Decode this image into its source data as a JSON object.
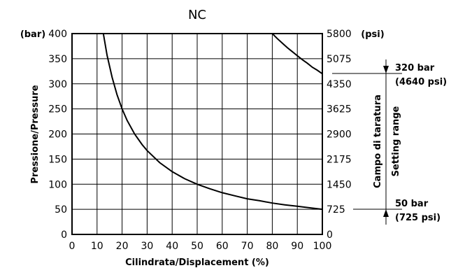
{
  "chart_data": {
    "type": "line",
    "title": "NC",
    "xlabel": "Cilindrata/Displacement (%)",
    "ylabel": "Pressione/Pressure",
    "y_unit_left": "(bar)",
    "y_unit_right": "(psi)",
    "xlim": [
      0,
      100
    ],
    "ylim": [
      0,
      400
    ],
    "grid": true,
    "x_ticks": [
      "0",
      "10",
      "20",
      "30",
      "40",
      "50",
      "60",
      "70",
      "80",
      "90",
      "100"
    ],
    "y_ticks_left": [
      "0",
      "50",
      "100",
      "150",
      "200",
      "250",
      "300",
      "350",
      "400"
    ],
    "y_ticks_right": [
      "0",
      "725",
      "1450",
      "2175",
      "2900",
      "3625",
      "4350",
      "5075",
      "5800"
    ],
    "series": [
      {
        "x": [
          12.5,
          14,
          16,
          18,
          20,
          22,
          25,
          28,
          30,
          35,
          40,
          45,
          50,
          55,
          60,
          65,
          70,
          75,
          80,
          85,
          90,
          95,
          100
        ],
        "y": [
          400,
          357,
          313,
          278,
          250,
          227,
          200,
          179,
          167,
          143,
          125,
          111,
          100,
          91,
          83,
          77,
          71,
          67,
          62.5,
          59,
          56,
          53,
          50
        ]
      },
      {
        "x": [
          80,
          82,
          84,
          86,
          88,
          90,
          92,
          94,
          96,
          98,
          100
        ],
        "y": [
          400,
          390,
          381,
          372,
          364,
          356,
          348,
          341,
          333,
          327,
          320
        ]
      }
    ],
    "annotations": {
      "range_label_1": "Campo di taratura",
      "range_label_2": "Setting range",
      "max_bar": "320 bar",
      "max_psi": "(4640 psi)",
      "min_bar": "50 bar",
      "min_psi": "(725 psi)",
      "max_value": 320,
      "min_value": 50
    }
  }
}
